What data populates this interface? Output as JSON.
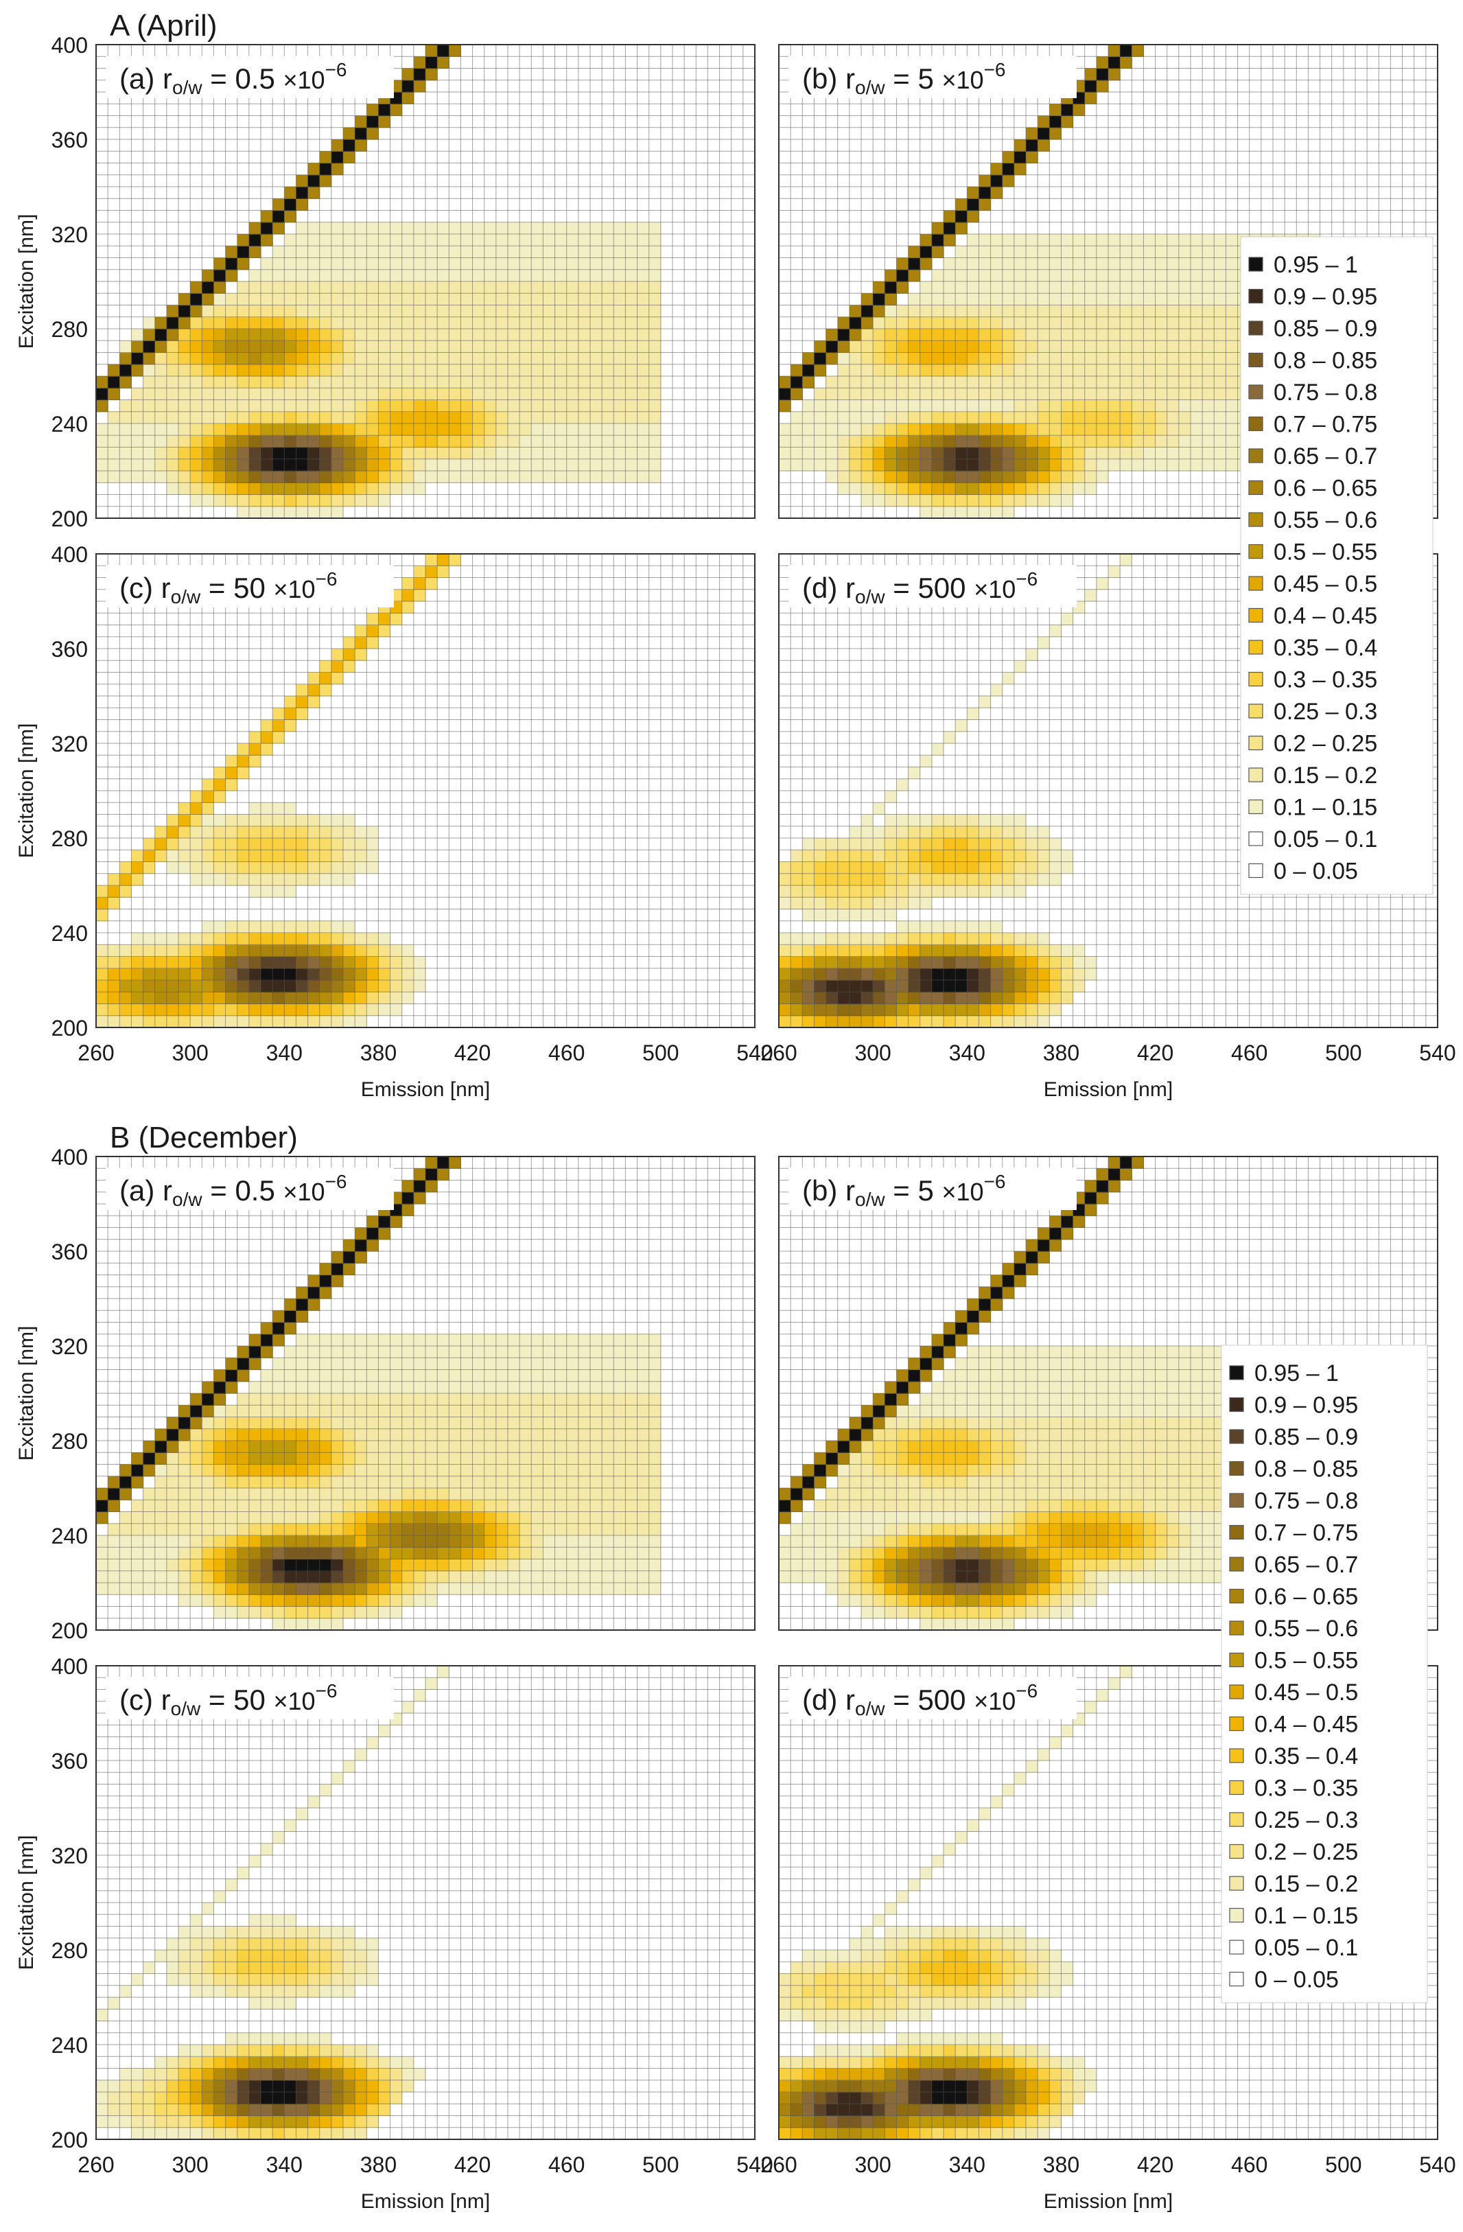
{
  "chart_data": {
    "type": "heatmap",
    "description_axes": {
      "xlabel": "Emission  [nm]",
      "ylabel": "Excitation  [nm]",
      "xlim": [
        260,
        540
      ],
      "ylim": [
        200,
        400
      ],
      "x_ticks": [
        "260",
        "300",
        "340",
        "380",
        "420",
        "460",
        "500",
        "540"
      ],
      "y_ticks": [
        "200",
        "240",
        "280",
        "320",
        "360",
        "400"
      ]
    },
    "sections": [
      {
        "title": "A (April)",
        "panels": [
          {
            "tag": "(a)",
            "factor": "0.5",
            "mult": "×10",
            "exp": "−6",
            "peaks": [
              {
                "em": 343,
                "ex": 225,
                "v": 1.0
              },
              {
                "em": 328,
                "ex": 272,
                "v": 0.6
              },
              {
                "em": 400,
                "ex": 240,
                "v": 0.45
              }
            ],
            "rayleigh": 1.0,
            "extent": 1.0
          },
          {
            "tag": "(b)",
            "factor": "5",
            "mult": "×10",
            "exp": "−6",
            "peaks": [
              {
                "em": 340,
                "ex": 225,
                "v": 0.95
              },
              {
                "em": 330,
                "ex": 272,
                "v": 0.45
              },
              {
                "em": 395,
                "ex": 240,
                "v": 0.35
              }
            ],
            "rayleigh": 1.0,
            "extent": 0.9
          },
          {
            "tag": "(c)",
            "factor": "50",
            "mult": "×10",
            "exp": "−6",
            "peaks": [
              {
                "em": 338,
                "ex": 222,
                "v": 1.0
              },
              {
                "em": 290,
                "ex": 217,
                "v": 0.6
              },
              {
                "em": 335,
                "ex": 275,
                "v": 0.35
              }
            ],
            "rayleigh": 0.4,
            "extent": 0.55
          },
          {
            "tag": "(d)",
            "factor": "500",
            "mult": "×10",
            "exp": "−6",
            "peaks": [
              {
                "em": 290,
                "ex": 216,
                "v": 0.95
              },
              {
                "em": 333,
                "ex": 220,
                "v": 1.0
              },
              {
                "em": 335,
                "ex": 272,
                "v": 0.4
              },
              {
                "em": 290,
                "ex": 264,
                "v": 0.35
              }
            ],
            "rayleigh": 0.1,
            "extent": 0.5
          }
        ],
        "legend": [
          "0.95 – 1",
          "0.9 – 0.95",
          "0.85 – 0.9",
          "0.8 – 0.85",
          "0.75 – 0.8",
          "0.7 – 0.75",
          "0.65 – 0.7",
          "0.6 – 0.65",
          "0.55 – 0.6",
          "0.5 – 0.55",
          "0.45 – 0.5",
          "0.4 – 0.45",
          "0.35 – 0.4",
          "0.3 – 0.35",
          "0.25 – 0.3",
          "0.2 – 0.25",
          "0.15 – 0.2",
          "0.1 – 0.15",
          "0.05 – 0.1",
          "0 – 0.05"
        ]
      },
      {
        "title": "B (December)",
        "panels": [
          {
            "tag": "(a)",
            "factor": "0.5",
            "mult": "×10",
            "exp": "−6",
            "peaks": [
              {
                "em": 350,
                "ex": 226,
                "v": 1.0
              },
              {
                "em": 400,
                "ex": 240,
                "v": 0.7
              },
              {
                "em": 335,
                "ex": 275,
                "v": 0.55
              }
            ],
            "rayleigh": 1.0,
            "extent": 1.0
          },
          {
            "tag": "(b)",
            "factor": "5",
            "mult": "×10",
            "exp": "−6",
            "peaks": [
              {
                "em": 340,
                "ex": 225,
                "v": 0.95
              },
              {
                "em": 390,
                "ex": 240,
                "v": 0.5
              },
              {
                "em": 330,
                "ex": 275,
                "v": 0.4
              }
            ],
            "rayleigh": 1.0,
            "extent": 0.9
          },
          {
            "tag": "(c)",
            "factor": "50",
            "mult": "×10",
            "exp": "−6",
            "peaks": [
              {
                "em": 338,
                "ex": 220,
                "v": 1.0
              },
              {
                "em": 300,
                "ex": 216,
                "v": 0.3
              },
              {
                "em": 335,
                "ex": 275,
                "v": 0.35
              }
            ],
            "rayleigh": 0.08,
            "extent": 0.5
          },
          {
            "tag": "(d)",
            "factor": "500",
            "mult": "×10",
            "exp": "−6",
            "peaks": [
              {
                "em": 290,
                "ex": 214,
                "v": 0.95
              },
              {
                "em": 333,
                "ex": 220,
                "v": 1.0
              },
              {
                "em": 335,
                "ex": 272,
                "v": 0.4
              },
              {
                "em": 290,
                "ex": 263,
                "v": 0.3
              }
            ],
            "rayleigh": 0.05,
            "extent": 0.5
          }
        ],
        "legend": [
          "0.95 – 1",
          "0.9 – 0.95",
          "0.85 – 0.9",
          "0.8 – 0.85",
          "0.75 – 0.8",
          "0.7 – 0.75",
          "0.65 – 0.7",
          "0.6 – 0.65",
          "0.55 – 0.6",
          "0.5 – 0.55",
          "0.45 – 0.5",
          "0.4 – 0.45",
          "0.35 – 0.4",
          "0.3 – 0.35",
          "0.25 – 0.3",
          "0.2 – 0.25",
          "0.15 – 0.2",
          "0.1 – 0.15",
          "0.05 – 0.1",
          "0 – 0.05"
        ]
      }
    ],
    "legend_colors": [
      "#111111",
      "#3b2a1b",
      "#5a4328",
      "#7a5a20",
      "#8a6a3a",
      "#8f6c12",
      "#9e7a12",
      "#a9830c",
      "#b58d0a",
      "#c09a08",
      "#e0a800",
      "#f0b400",
      "#f6c21a",
      "#f8d040",
      "#f8dc66",
      "#f6e38a",
      "#f4e9a8",
      "#f3efc4",
      "#ffffff",
      "#ffffff"
    ],
    "subscript_label": "o/w",
    "r_symbol": "r"
  }
}
